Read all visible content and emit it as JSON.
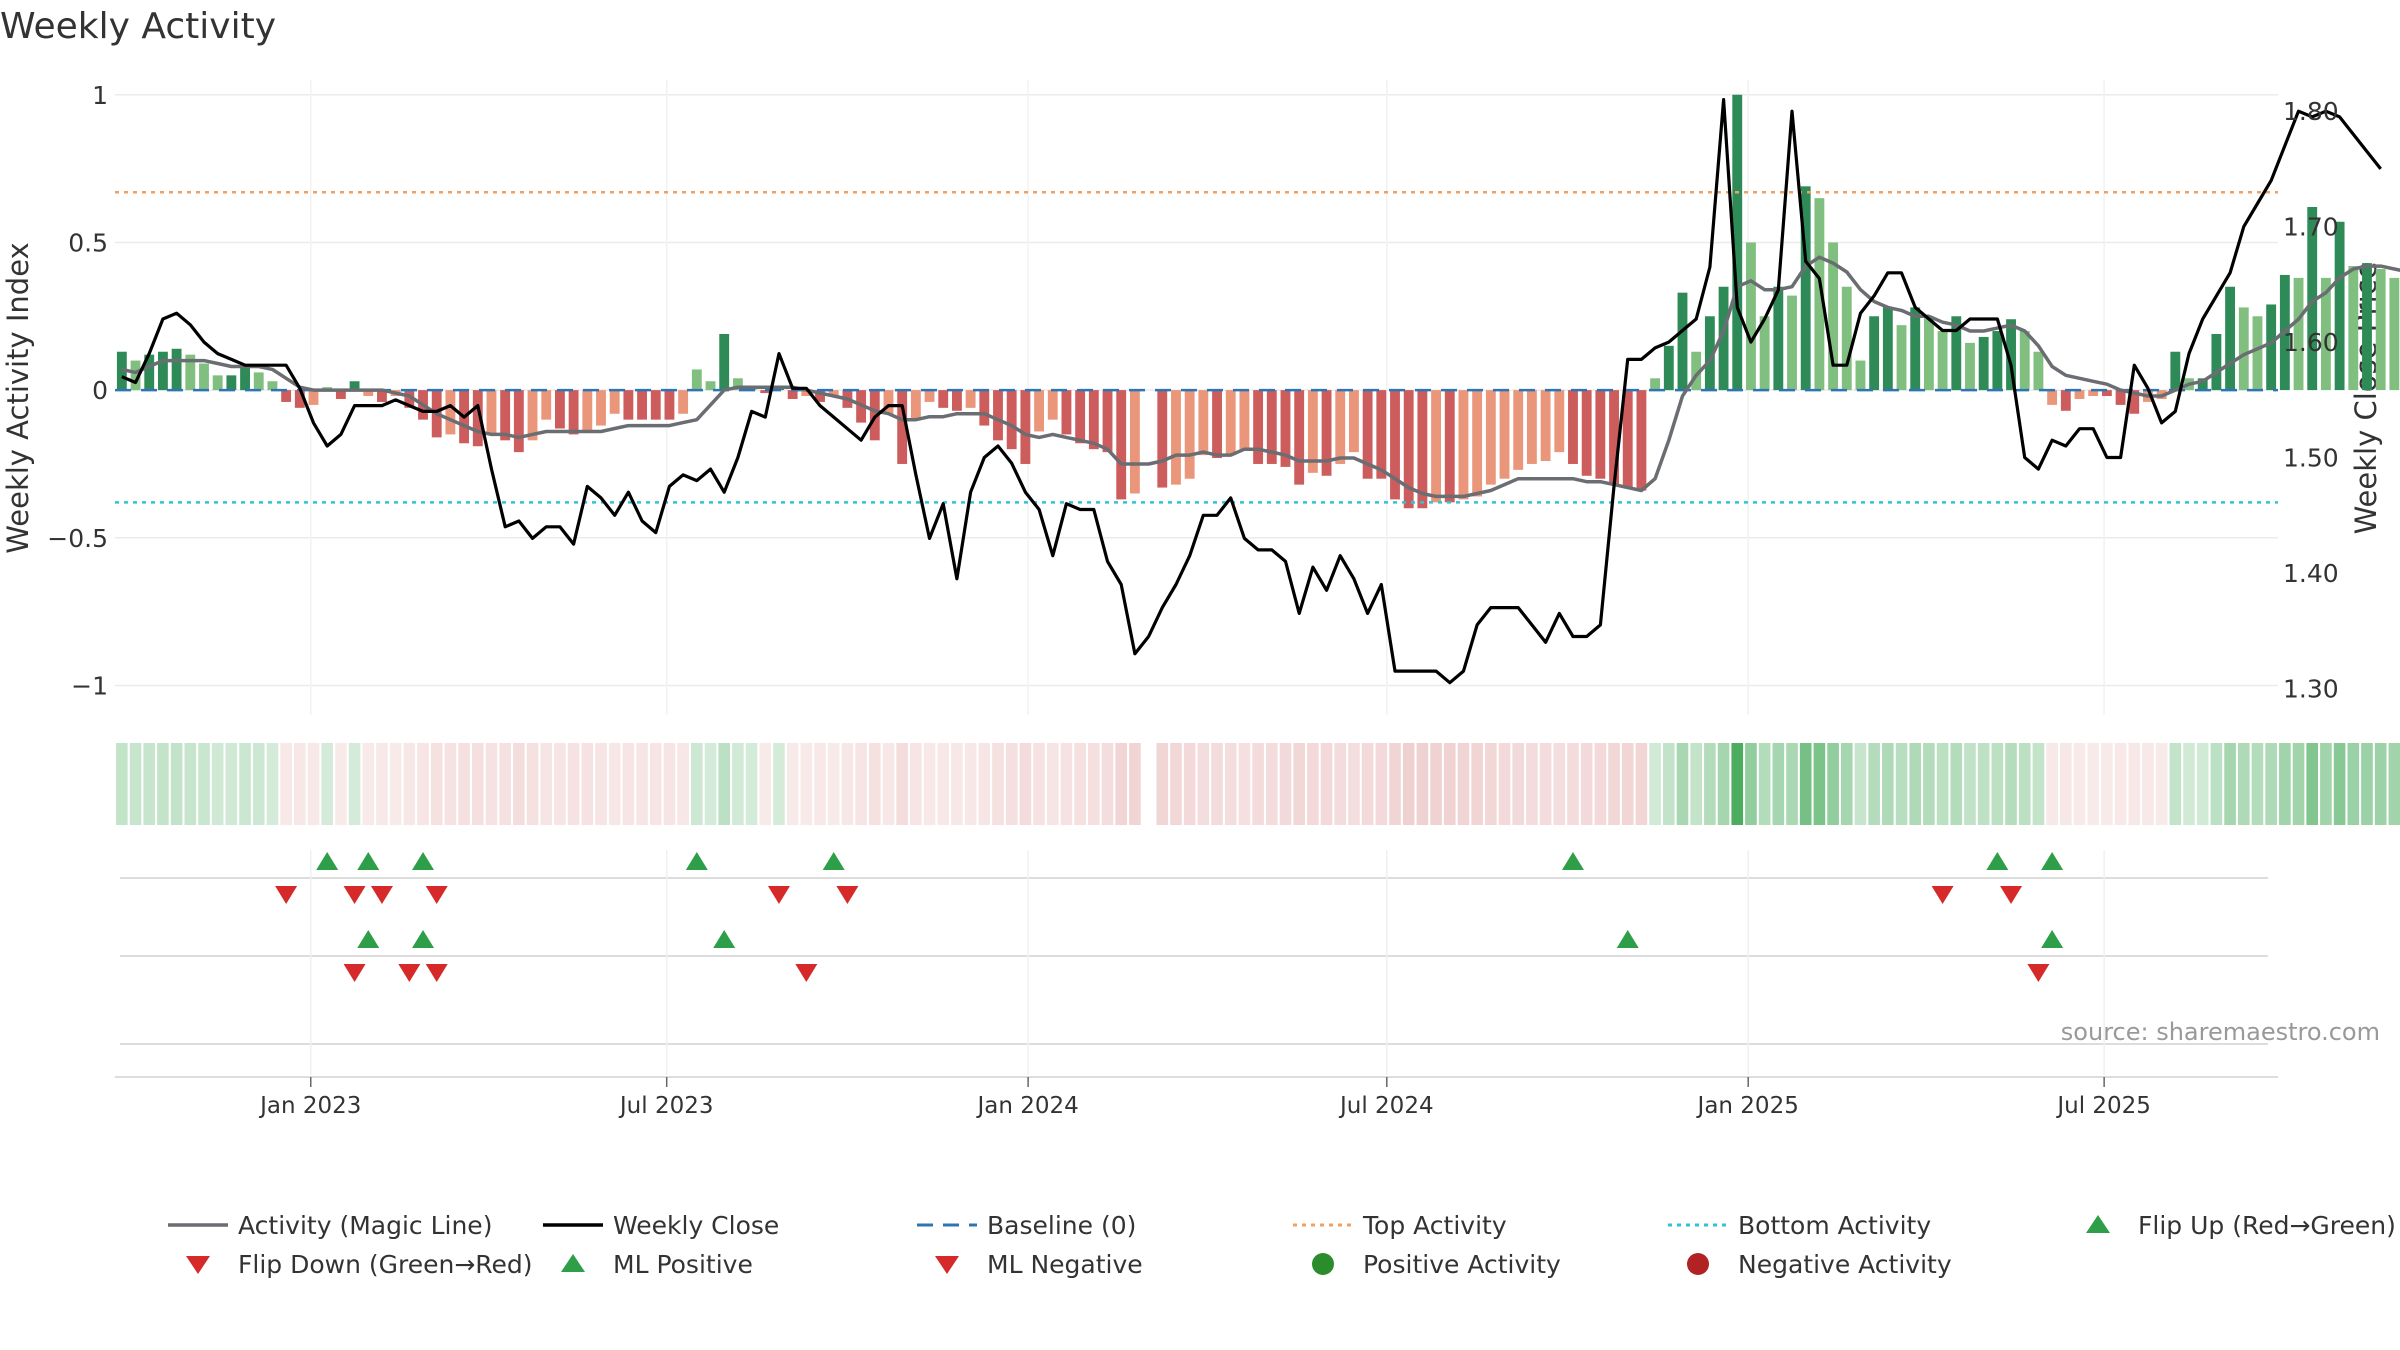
{
  "chart_data": {
    "type": "bar",
    "title": "Weekly Activity",
    "ylabel_left": "Weekly Activity Index",
    "ylabel_right": "Weekly Close Price",
    "ylim_left": [
      -1.1,
      1.05
    ],
    "ylim_right": [
      1.277,
      1.827
    ],
    "yticks_left": [
      {
        "value": 1,
        "label": "1"
      },
      {
        "value": 0.5,
        "label": "0.5"
      },
      {
        "value": 0,
        "label": "0"
      },
      {
        "value": -0.5,
        "label": "−0.5"
      },
      {
        "value": -1,
        "label": "−1"
      }
    ],
    "yticks_right": [
      {
        "value": 1.8,
        "label": "1.80"
      },
      {
        "value": 1.7,
        "label": "1.70"
      },
      {
        "value": 1.6,
        "label": "1.60"
      },
      {
        "value": 1.5,
        "label": "1.50"
      },
      {
        "value": 1.4,
        "label": "1.40"
      },
      {
        "value": 1.3,
        "label": "1.30"
      }
    ],
    "x_range_weeks": [
      0,
      158
    ],
    "xticks": [
      {
        "week": 14.3,
        "label": "Jan 2023"
      },
      {
        "week": 40.3,
        "label": "Jul 2023"
      },
      {
        "week": 66.7,
        "label": "Jan 2024"
      },
      {
        "week": 92.9,
        "label": "Jul 2024"
      },
      {
        "week": 119.3,
        "label": "Jan 2025"
      },
      {
        "week": 145.3,
        "label": "Jul 2025"
      }
    ],
    "top_activity": 0.67,
    "bottom_activity": -0.38,
    "baseline": 0,
    "activity": [
      0.13,
      0.1,
      0.12,
      0.13,
      0.14,
      0.12,
      0.09,
      0.05,
      0.05,
      0.08,
      0.06,
      0.03,
      -0.04,
      -0.06,
      -0.05,
      0.01,
      -0.03,
      0.03,
      -0.02,
      -0.04,
      -0.02,
      -0.06,
      -0.1,
      -0.16,
      -0.15,
      -0.18,
      -0.19,
      -0.15,
      -0.17,
      -0.21,
      -0.17,
      -0.1,
      -0.13,
      -0.15,
      -0.14,
      -0.12,
      -0.08,
      -0.1,
      -0.1,
      -0.1,
      -0.1,
      -0.08,
      0.07,
      0.03,
      0.19,
      0.04,
      0.01,
      -0.01,
      0.01,
      -0.03,
      -0.02,
      -0.04,
      -0.02,
      -0.06,
      -0.11,
      -0.17,
      -0.08,
      -0.25,
      -0.1,
      -0.04,
      -0.06,
      -0.07,
      -0.06,
      -0.12,
      -0.17,
      -0.2,
      -0.25,
      -0.14,
      -0.1,
      -0.15,
      -0.18,
      -0.2,
      -0.21,
      -0.37,
      -0.35,
      0.0,
      -0.33,
      -0.32,
      -0.3,
      -0.22,
      -0.23,
      -0.22,
      -0.2,
      -0.25,
      -0.25,
      -0.26,
      -0.32,
      -0.28,
      -0.29,
      -0.25,
      -0.21,
      -0.3,
      -0.3,
      -0.37,
      -0.4,
      -0.4,
      -0.38,
      -0.38,
      -0.37,
      -0.36,
      -0.32,
      -0.3,
      -0.27,
      -0.25,
      -0.24,
      -0.21,
      -0.25,
      -0.29,
      -0.3,
      -0.32,
      -0.33,
      -0.34,
      0.04,
      0.15,
      0.33,
      0.13,
      0.25,
      0.35,
      1.0,
      0.5,
      0.25,
      0.35,
      0.32,
      0.69,
      0.65,
      0.5,
      0.35,
      0.1,
      0.25,
      0.28,
      0.22,
      0.28,
      0.25,
      0.2,
      0.25,
      0.16,
      0.18,
      0.2,
      0.24,
      0.2,
      0.13,
      -0.05,
      -0.07,
      -0.03,
      -0.02,
      -0.02,
      -0.05,
      -0.08,
      -0.04,
      -0.03,
      0.13,
      0.04,
      0.04,
      0.19,
      0.35,
      0.28,
      0.25,
      0.29,
      0.39,
      0.38,
      0.62,
      0.38,
      0.57,
      0.42,
      0.43,
      0.41,
      0.38,
      0.34
    ],
    "magic_line": [
      0.07,
      0.06,
      0.08,
      0.1,
      0.1,
      0.1,
      0.1,
      0.09,
      0.08,
      0.08,
      0.08,
      0.07,
      0.04,
      0.01,
      0.0,
      0.0,
      0.0,
      0.0,
      0.0,
      0.0,
      -0.01,
      -0.02,
      -0.05,
      -0.08,
      -0.1,
      -0.12,
      -0.14,
      -0.15,
      -0.15,
      -0.16,
      -0.15,
      -0.14,
      -0.14,
      -0.14,
      -0.14,
      -0.14,
      -0.13,
      -0.12,
      -0.12,
      -0.12,
      -0.12,
      -0.11,
      -0.1,
      -0.05,
      0.0,
      0.01,
      0.01,
      0.01,
      0.01,
      0.01,
      0.0,
      -0.01,
      -0.02,
      -0.03,
      -0.05,
      -0.07,
      -0.08,
      -0.1,
      -0.1,
      -0.09,
      -0.09,
      -0.08,
      -0.08,
      -0.08,
      -0.1,
      -0.12,
      -0.15,
      -0.16,
      -0.15,
      -0.16,
      -0.17,
      -0.18,
      -0.2,
      -0.25,
      -0.25,
      -0.25,
      -0.24,
      -0.22,
      -0.22,
      -0.21,
      -0.22,
      -0.22,
      -0.2,
      -0.2,
      -0.21,
      -0.22,
      -0.24,
      -0.24,
      -0.24,
      -0.23,
      -0.23,
      -0.25,
      -0.27,
      -0.3,
      -0.33,
      -0.35,
      -0.36,
      -0.36,
      -0.36,
      -0.35,
      -0.34,
      -0.32,
      -0.3,
      -0.3,
      -0.3,
      -0.3,
      -0.3,
      -0.31,
      -0.31,
      -0.32,
      -0.33,
      -0.34,
      -0.3,
      -0.17,
      -0.02,
      0.05,
      0.1,
      0.2,
      0.35,
      0.37,
      0.34,
      0.34,
      0.35,
      0.42,
      0.45,
      0.43,
      0.4,
      0.34,
      0.3,
      0.28,
      0.27,
      0.25,
      0.25,
      0.23,
      0.22,
      0.2,
      0.2,
      0.21,
      0.22,
      0.2,
      0.15,
      0.08,
      0.05,
      0.04,
      0.03,
      0.02,
      0.0,
      -0.01,
      -0.02,
      -0.02,
      0.0,
      0.02,
      0.03,
      0.06,
      0.09,
      0.12,
      0.14,
      0.16,
      0.2,
      0.24,
      0.3,
      0.33,
      0.38,
      0.41,
      0.42,
      0.42,
      0.41,
      0.4
    ],
    "weekly_close": [
      1.57,
      1.565,
      1.59,
      1.62,
      1.625,
      1.615,
      1.6,
      1.59,
      1.585,
      1.58,
      1.58,
      1.58,
      1.58,
      1.56,
      1.53,
      1.51,
      1.52,
      1.545,
      1.545,
      1.545,
      1.55,
      1.545,
      1.54,
      1.54,
      1.545,
      1.535,
      1.545,
      1.49,
      1.44,
      1.445,
      1.43,
      1.44,
      1.44,
      1.425,
      1.475,
      1.465,
      1.45,
      1.47,
      1.445,
      1.435,
      1.475,
      1.485,
      1.48,
      1.49,
      1.47,
      1.5,
      1.54,
      1.535,
      1.59,
      1.56,
      1.56,
      1.545,
      1.535,
      1.525,
      1.515,
      1.535,
      1.545,
      1.545,
      1.485,
      1.43,
      1.46,
      1.395,
      1.47,
      1.5,
      1.51,
      1.495,
      1.47,
      1.455,
      1.415,
      1.46,
      1.455,
      1.455,
      1.41,
      1.39,
      1.33,
      1.345,
      1.37,
      1.39,
      1.415,
      1.45,
      1.45,
      1.465,
      1.43,
      1.42,
      1.42,
      1.41,
      1.365,
      1.405,
      1.385,
      1.415,
      1.395,
      1.365,
      1.39,
      1.315,
      1.315,
      1.315,
      1.315,
      1.305,
      1.315,
      1.355,
      1.37,
      1.37,
      1.37,
      1.355,
      1.34,
      1.365,
      1.345,
      1.345,
      1.355,
      1.475,
      1.585,
      1.585,
      1.595,
      1.6,
      1.61,
      1.62,
      1.665,
      1.81,
      1.63,
      1.6,
      1.62,
      1.645,
      1.8,
      1.67,
      1.655,
      1.58,
      1.58,
      1.625,
      1.64,
      1.66,
      1.66,
      1.63,
      1.62,
      1.61,
      1.61,
      1.62,
      1.62,
      1.62,
      1.58,
      1.5,
      1.49,
      1.515,
      1.51,
      1.525,
      1.525,
      1.5,
      1.5,
      1.58,
      1.56,
      1.53,
      1.54,
      1.59,
      1.62,
      1.64,
      1.66,
      1.7,
      1.72,
      1.74,
      1.77,
      1.8,
      1.795,
      1.8,
      1.795,
      1.78,
      1.765,
      1.75
    ],
    "flip_up_weeks": [
      15,
      18,
      22,
      42,
      52,
      106,
      137,
      141
    ],
    "flip_down_weeks": [
      12,
      17,
      19,
      23,
      48,
      53,
      133,
      138
    ],
    "ml_positive_weeks": [
      18,
      22,
      44,
      110,
      141
    ],
    "ml_negative_weeks": [
      17,
      21,
      23,
      50,
      140
    ],
    "legend": [
      {
        "label": "Activity (Magic Line)",
        "symbol": "line",
        "color": "#6a6d72"
      },
      {
        "label": "Weekly Close",
        "symbol": "line",
        "color": "#000000"
      },
      {
        "label": "Baseline (0)",
        "symbol": "dashed",
        "color": "#2e75b6"
      },
      {
        "label": "Top Activity",
        "symbol": "dotted",
        "color": "#f0a060"
      },
      {
        "label": "Bottom Activity",
        "symbol": "dotted",
        "color": "#2ec4d6"
      },
      {
        "label": "Flip Up (Red→Green)",
        "symbol": "up",
        "color": "#2e9e48"
      },
      {
        "label": "Flip Down (Green→Red)",
        "symbol": "down",
        "color": "#d62a2a"
      },
      {
        "label": "ML Positive",
        "symbol": "up",
        "color": "#2e9e48"
      },
      {
        "label": "ML Negative",
        "symbol": "down",
        "color": "#d62a2a"
      },
      {
        "label": "Positive Activity",
        "symbol": "dot",
        "color": "#2a8c2a"
      },
      {
        "label": "Negative Activity",
        "symbol": "dot",
        "color": "#b22222"
      }
    ],
    "source": "source: sharemaestro.com",
    "colors": {
      "pos_strong": "#2e8b57",
      "pos_light": "#80bf80",
      "neg_strong": "#cd5c5c",
      "neg_light": "#e9967a",
      "magic_line": "#6a6d72",
      "close": "#000000",
      "baseline": "#2e75b6",
      "top": "#f0a060",
      "bottom": "#2ec4d6",
      "up": "#2e9e48",
      "down": "#d62a2a"
    }
  }
}
